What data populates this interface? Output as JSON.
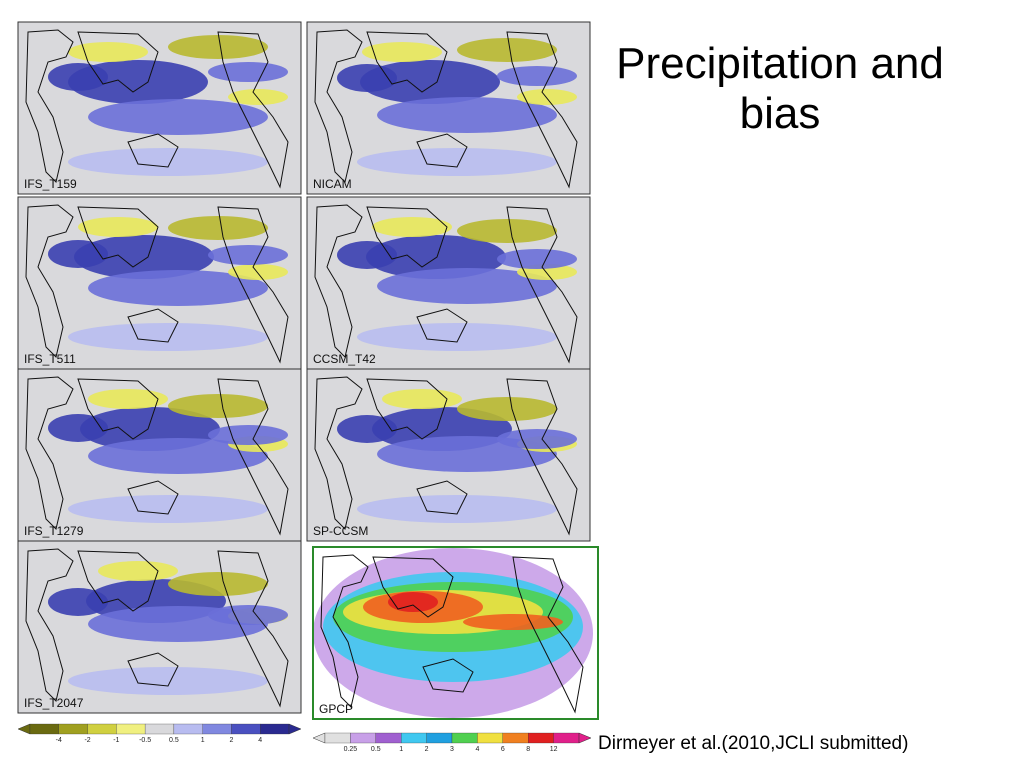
{
  "title": "Precipitation and bias",
  "panels": [
    {
      "label": "IFS_T159"
    },
    {
      "label": "NICAM"
    },
    {
      "label": "IFS_T511"
    },
    {
      "label": "CCSM_T42"
    },
    {
      "label": "IFS_T1279"
    },
    {
      "label": "SP-CCSM"
    },
    {
      "label": "IFS_T2047"
    },
    {
      "label": "GPCP"
    }
  ],
  "bias_colorbar": {
    "ticks": [
      -4,
      -2,
      -1,
      -0.5,
      0.5,
      1,
      2,
      4
    ]
  },
  "precip_colorbar": {
    "ticks": [
      0.25,
      0.5,
      1,
      2,
      3,
      4,
      6,
      8,
      12
    ]
  },
  "citation": "Dirmeyer et al.(2010,JCLI submitted)"
}
